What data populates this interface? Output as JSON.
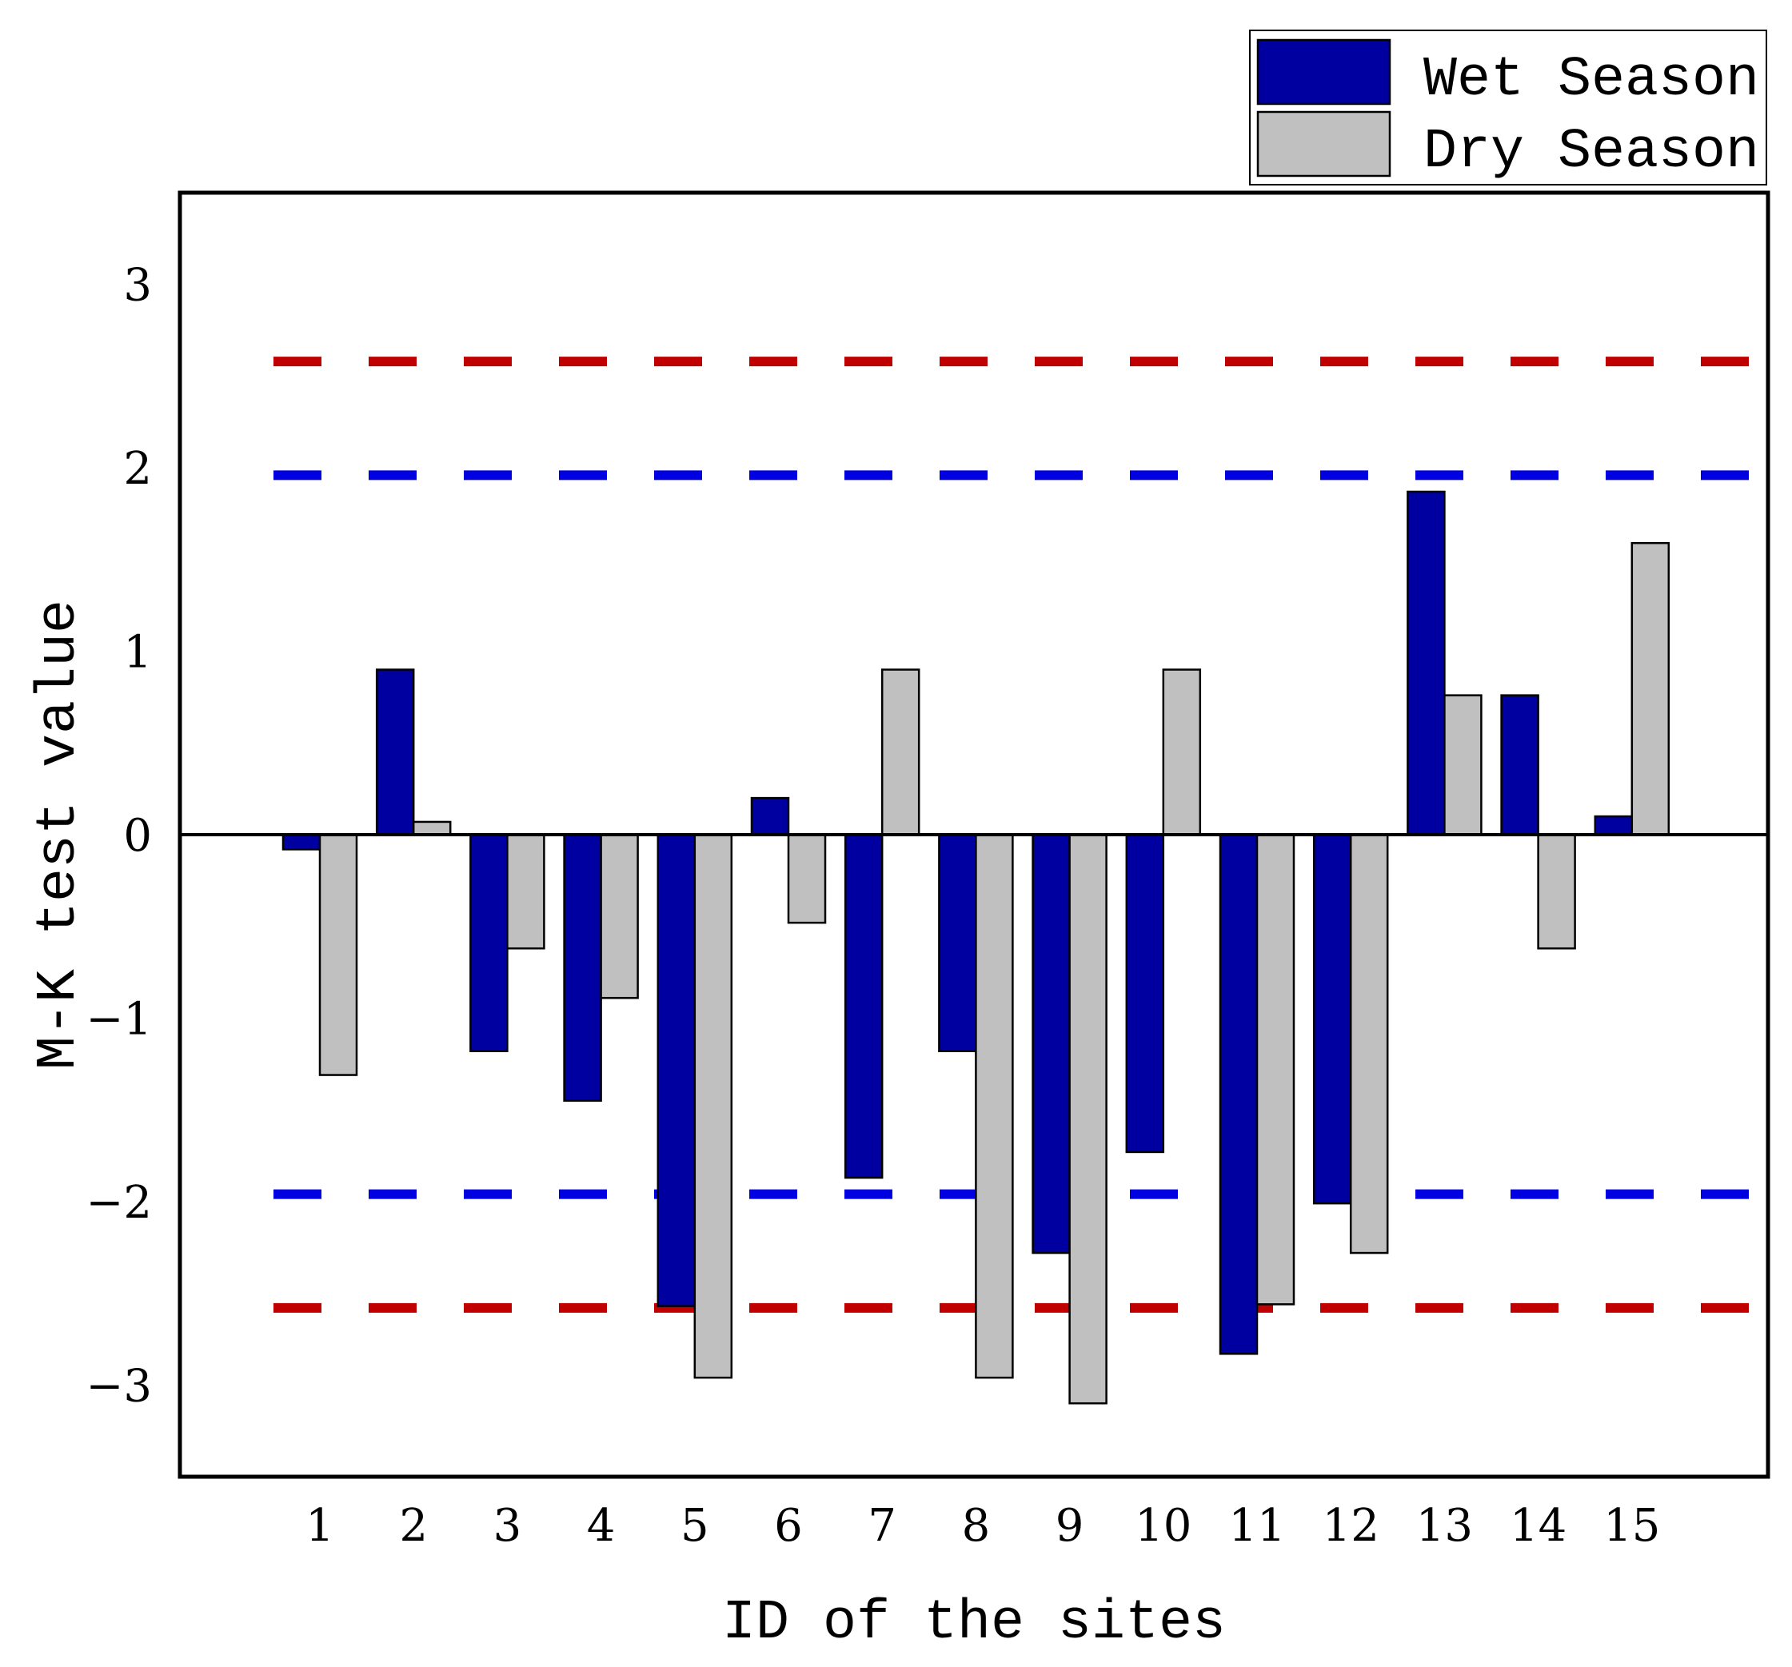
{
  "chart_data": {
    "type": "bar",
    "title": "",
    "xlabel": "ID of the sites",
    "ylabel": "M-K test value",
    "ylim": [
      -3.5,
      3.5
    ],
    "yticks": [
      -3,
      -2,
      -1,
      0,
      1,
      2,
      3
    ],
    "ytick_labels": [
      "−3",
      "−2",
      "−1",
      "0",
      "1",
      "2",
      "3"
    ],
    "categories": [
      "1",
      "2",
      "3",
      "4",
      "5",
      "6",
      "7",
      "8",
      "9",
      "10",
      "11",
      "12",
      "13",
      "14",
      "15"
    ],
    "series": [
      {
        "name": "Wet Season",
        "color": "#0000a0",
        "values": [
          -0.08,
          0.9,
          -1.18,
          -1.45,
          -2.57,
          0.2,
          -1.87,
          -1.18,
          -2.28,
          -1.73,
          -2.83,
          -2.01,
          1.87,
          0.76,
          0.1
        ]
      },
      {
        "name": "Dry Season",
        "color": "#c0c0c0",
        "values": [
          -1.31,
          0.07,
          -0.62,
          -0.89,
          -2.96,
          -0.48,
          0.9,
          -2.96,
          -3.1,
          0.9,
          -2.56,
          -2.28,
          0.76,
          -0.62,
          1.59
        ]
      }
    ],
    "reference_lines": [
      {
        "value": 2.58,
        "color": "#c00000",
        "style": "dashed"
      },
      {
        "value": 1.96,
        "color": "#0000e0",
        "style": "dashed"
      },
      {
        "value": -1.96,
        "color": "#0000e0",
        "style": "dashed"
      },
      {
        "value": -2.58,
        "color": "#c00000",
        "style": "dashed"
      }
    ],
    "legend": {
      "position": "top-right",
      "entries": [
        "Wet Season",
        "Dry Season"
      ]
    },
    "grid": false
  }
}
